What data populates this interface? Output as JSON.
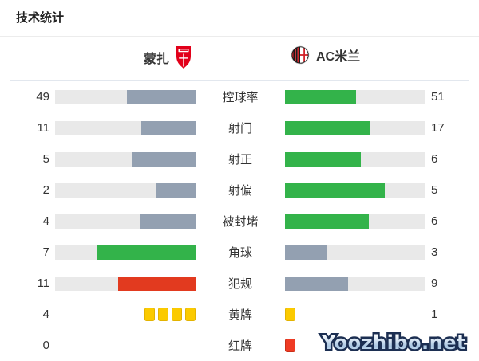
{
  "title": "技术统计",
  "teams": {
    "home": {
      "name": "蒙扎"
    },
    "away": {
      "name": "AC米兰"
    }
  },
  "rows": [
    {
      "label": "控球率",
      "type": "bars",
      "left": {
        "value": "49",
        "style": "slate"
      },
      "right": {
        "value": "51",
        "style": "green"
      }
    },
    {
      "label": "射门",
      "type": "bars",
      "left": {
        "value": "11",
        "style": "slate"
      },
      "right": {
        "value": "17",
        "style": "green"
      }
    },
    {
      "label": "射正",
      "type": "bars",
      "left": {
        "value": "5",
        "style": "slate"
      },
      "right": {
        "value": "6",
        "style": "green"
      }
    },
    {
      "label": "射偏",
      "type": "bars",
      "left": {
        "value": "2",
        "style": "slate"
      },
      "right": {
        "value": "5",
        "style": "green"
      }
    },
    {
      "label": "被封堵",
      "type": "bars",
      "left": {
        "value": "4",
        "style": "slate"
      },
      "right": {
        "value": "6",
        "style": "green"
      }
    },
    {
      "label": "角球",
      "type": "bars",
      "left": {
        "value": "7",
        "style": "green"
      },
      "right": {
        "value": "3",
        "style": "slate"
      }
    },
    {
      "label": "犯规",
      "type": "bars",
      "left": {
        "value": "11",
        "style": "red"
      },
      "right": {
        "value": "9",
        "style": "slate"
      }
    },
    {
      "label": "黄牌",
      "type": "cards",
      "card_color": "yellow",
      "left": {
        "value": "4",
        "cards": 4
      },
      "right": {
        "value": "1",
        "cards": 1
      }
    },
    {
      "label": "红牌",
      "type": "cards",
      "card_color": "red",
      "left": {
        "value": "0",
        "cards": 0
      },
      "right": {
        "value": "",
        "cards": 1
      }
    }
  ],
  "watermark": "Yoozhibo.net",
  "colors": {
    "trailing_bar": "#93a0b1",
    "leading_bar": "#33b34a",
    "foul_bar": "#e23a1f",
    "bar_track": "#e9e9e9",
    "yellow_card": "#fbca00",
    "red_card": "#ef3b24",
    "text": "#333333"
  },
  "chart_data": {
    "type": "bar",
    "title": "技术统计",
    "categories": [
      "控球率",
      "射门",
      "射正",
      "射偏",
      "被封堵",
      "角球",
      "犯规",
      "黄牌",
      "红牌"
    ],
    "series": [
      {
        "name": "蒙扎",
        "values": [
          49,
          11,
          5,
          2,
          4,
          7,
          11,
          4,
          0
        ]
      },
      {
        "name": "AC米兰",
        "values": [
          51,
          17,
          6,
          5,
          6,
          3,
          9,
          1,
          null
        ]
      }
    ],
    "layout": "mirrored-horizontal-bars",
    "legend_position": "top",
    "notes": "away red-card value hidden behind watermark; bar fill proportional to value/(home+away)"
  }
}
